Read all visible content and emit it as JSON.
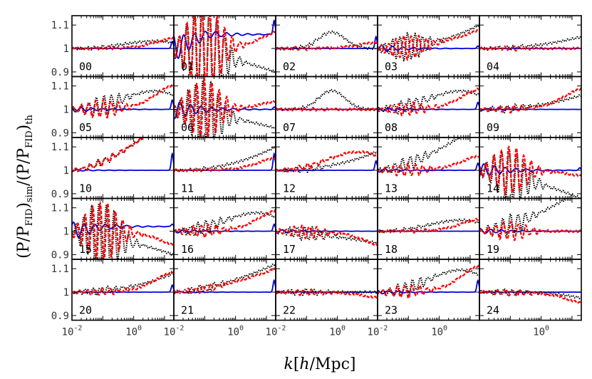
{
  "chart_data": {
    "type": "line",
    "layout": "5x5 grid of small multiples",
    "xlabel": "k[h/Mpc]",
    "ylabel": "(P/P_FID)_sim/(P/P_FID)_th",
    "ylabel_parts": {
      "lead": "(P/P",
      "sub1": "FID",
      "mid": ")",
      "sub2": "sim",
      "slash": "/(P/P",
      "sub3": "FID",
      "close": ")",
      "sub4": "th"
    },
    "xlabel_parts": {
      "k": "k",
      "open": "[",
      "h": "h",
      "rest": "/Mpc]"
    },
    "xscale": "log",
    "xlim": [
      0.01,
      20
    ],
    "ylim": [
      0.88,
      1.14
    ],
    "xticklabels": [
      {
        "value": 0.01,
        "base": "10",
        "exp": "-2"
      },
      {
        "value": 1,
        "base": "10",
        "exp": "0"
      }
    ],
    "yticks": [
      {
        "value": 1.1,
        "label": "1.1"
      },
      {
        "value": 1.0,
        "label": "1"
      },
      {
        "value": 0.9,
        "label": "0.9"
      }
    ],
    "series_styles": [
      {
        "name": "black",
        "color": "#000000",
        "style": "dotted"
      },
      {
        "name": "red",
        "color": "#ff0000",
        "style": "dashed"
      },
      {
        "name": "blue",
        "color": "#0000dd",
        "style": "solid"
      }
    ],
    "panels": [
      {
        "label": "00",
        "black": {
          "amp": 0.04,
          "shape": "rise_peak"
        },
        "red": {
          "amp": 0.05,
          "shape": "rise_late"
        },
        "blue_spike": 0.03,
        "osc": 0.003
      },
      {
        "label": "01",
        "black": {
          "amp": -0.1,
          "shape": "fall"
        },
        "red": {
          "amp": 0.06,
          "shape": "fall_mid"
        },
        "blue_spike": 0.06,
        "osc": 0.15,
        "blue_level": 0.06
      },
      {
        "label": "02",
        "black": {
          "amp": 0.07,
          "shape": "bump_mid"
        },
        "red": {
          "amp": 0.03,
          "shape": "rise_late"
        },
        "blue_spike": 0.05,
        "osc": 0.004
      },
      {
        "label": "03",
        "black": {
          "amp": 0.1,
          "shape": "rise"
        },
        "red": {
          "amp": 0.08,
          "shape": "rise"
        },
        "blue_spike": 0.01,
        "osc": 0.04
      },
      {
        "label": "04",
        "black": {
          "amp": 0.05,
          "shape": "rise"
        },
        "red": {
          "amp": 0.0,
          "shape": "flat"
        },
        "blue_spike": 0.0,
        "osc": 0.005
      },
      {
        "label": "05",
        "black": {
          "amp": 0.1,
          "shape": "rise_peak"
        },
        "red": {
          "amp": 0.12,
          "shape": "rise_late"
        },
        "blue_spike": 0.04,
        "osc": 0.03
      },
      {
        "label": "06",
        "black": {
          "amp": -0.08,
          "shape": "fall"
        },
        "red": {
          "amp": 0.03,
          "shape": "fall_mid"
        },
        "blue_spike": 0.01,
        "osc": 0.1
      },
      {
        "label": "07",
        "black": {
          "amp": 0.08,
          "shape": "bump_mid"
        },
        "red": {
          "amp": 0.0,
          "shape": "flat"
        },
        "blue_spike": 0.0,
        "osc": 0.003
      },
      {
        "label": "08",
        "black": {
          "amp": 0.1,
          "shape": "rise_peak"
        },
        "red": {
          "amp": 0.1,
          "shape": "rise_late"
        },
        "blue_spike": 0.03,
        "osc": 0.02
      },
      {
        "label": "09",
        "black": {
          "amp": 0.06,
          "shape": "rise"
        },
        "red": {
          "amp": 0.1,
          "shape": "rise_late"
        },
        "blue_spike": 0.0,
        "osc": 0.01
      },
      {
        "label": "10",
        "black": {
          "amp": 0.25,
          "shape": "rise_steep"
        },
        "red": {
          "amp": 0.25,
          "shape": "rise_steep"
        },
        "blue_spike": 0.07,
        "osc": 0.01
      },
      {
        "label": "11",
        "black": {
          "amp": 0.1,
          "shape": "rise"
        },
        "red": {
          "amp": 0.06,
          "shape": "rise_late"
        },
        "blue_spike": 0.07,
        "osc": 0.003
      },
      {
        "label": "12",
        "black": {
          "amp": 0.08,
          "shape": "rise"
        },
        "red": {
          "amp": 0.1,
          "shape": "rise_peak"
        },
        "blue_spike": 0.04,
        "osc": 0.008
      },
      {
        "label": "13",
        "black": {
          "amp": 0.2,
          "shape": "rise_steep"
        },
        "red": {
          "amp": 0.07,
          "shape": "rise_late"
        },
        "blue_spike": 0.03,
        "osc": 0.02
      },
      {
        "label": "14",
        "black": {
          "amp": -0.12,
          "shape": "fall"
        },
        "red": {
          "amp": -0.02,
          "shape": "fall_mid"
        },
        "blue_spike": 0.01,
        "osc": 0.08
      },
      {
        "label": "15",
        "black": {
          "amp": -0.1,
          "shape": "fall"
        },
        "red": {
          "amp": -0.05,
          "shape": "fall_mid"
        },
        "blue_spike": 0.01,
        "osc": 0.1,
        "blue_level": 0.02
      },
      {
        "label": "16",
        "black": {
          "amp": 0.1,
          "shape": "rise_peak"
        },
        "red": {
          "amp": 0.1,
          "shape": "rise_late"
        },
        "blue_spike": 0.03,
        "osc": 0.02
      },
      {
        "label": "17",
        "black": {
          "amp": -0.05,
          "shape": "fall"
        },
        "red": {
          "amp": -0.05,
          "shape": "fall_mid"
        },
        "blue_spike": 0.0,
        "osc": 0.02
      },
      {
        "label": "18",
        "black": {
          "amp": 0.06,
          "shape": "rise_peak"
        },
        "red": {
          "amp": 0.06,
          "shape": "rise_late"
        },
        "blue_spike": 0.0,
        "osc": 0.004
      },
      {
        "label": "19",
        "black": {
          "amp": 0.18,
          "shape": "rise_steep"
        },
        "red": {
          "amp": 0.0,
          "shape": "fall_mid"
        },
        "blue_spike": 0.0,
        "osc": 0.03
      },
      {
        "label": "20",
        "black": {
          "amp": 0.08,
          "shape": "rise"
        },
        "red": {
          "amp": 0.1,
          "shape": "rise_late"
        },
        "blue_spike": 0.03,
        "osc": 0.01
      },
      {
        "label": "21",
        "black": {
          "amp": 0.12,
          "shape": "rise_steep"
        },
        "red": {
          "amp": 0.1,
          "shape": "rise_steep"
        },
        "blue_spike": 0.05,
        "osc": 0.01
      },
      {
        "label": "22",
        "black": {
          "amp": 0.0,
          "shape": "flat"
        },
        "red": {
          "amp": -0.02,
          "shape": "fall_mid"
        },
        "blue_spike": 0.0,
        "osc": 0.008
      },
      {
        "label": "23",
        "black": {
          "amp": 0.12,
          "shape": "rise_peak"
        },
        "red": {
          "amp": 0.13,
          "shape": "rise_late"
        },
        "blue_spike": 0.05,
        "osc": 0.02
      },
      {
        "label": "24",
        "black": {
          "amp": -0.02,
          "shape": "fall_mid"
        },
        "red": {
          "amp": -0.04,
          "shape": "fall_mid"
        },
        "blue_spike": 0.0,
        "osc": 0.008
      }
    ]
  }
}
